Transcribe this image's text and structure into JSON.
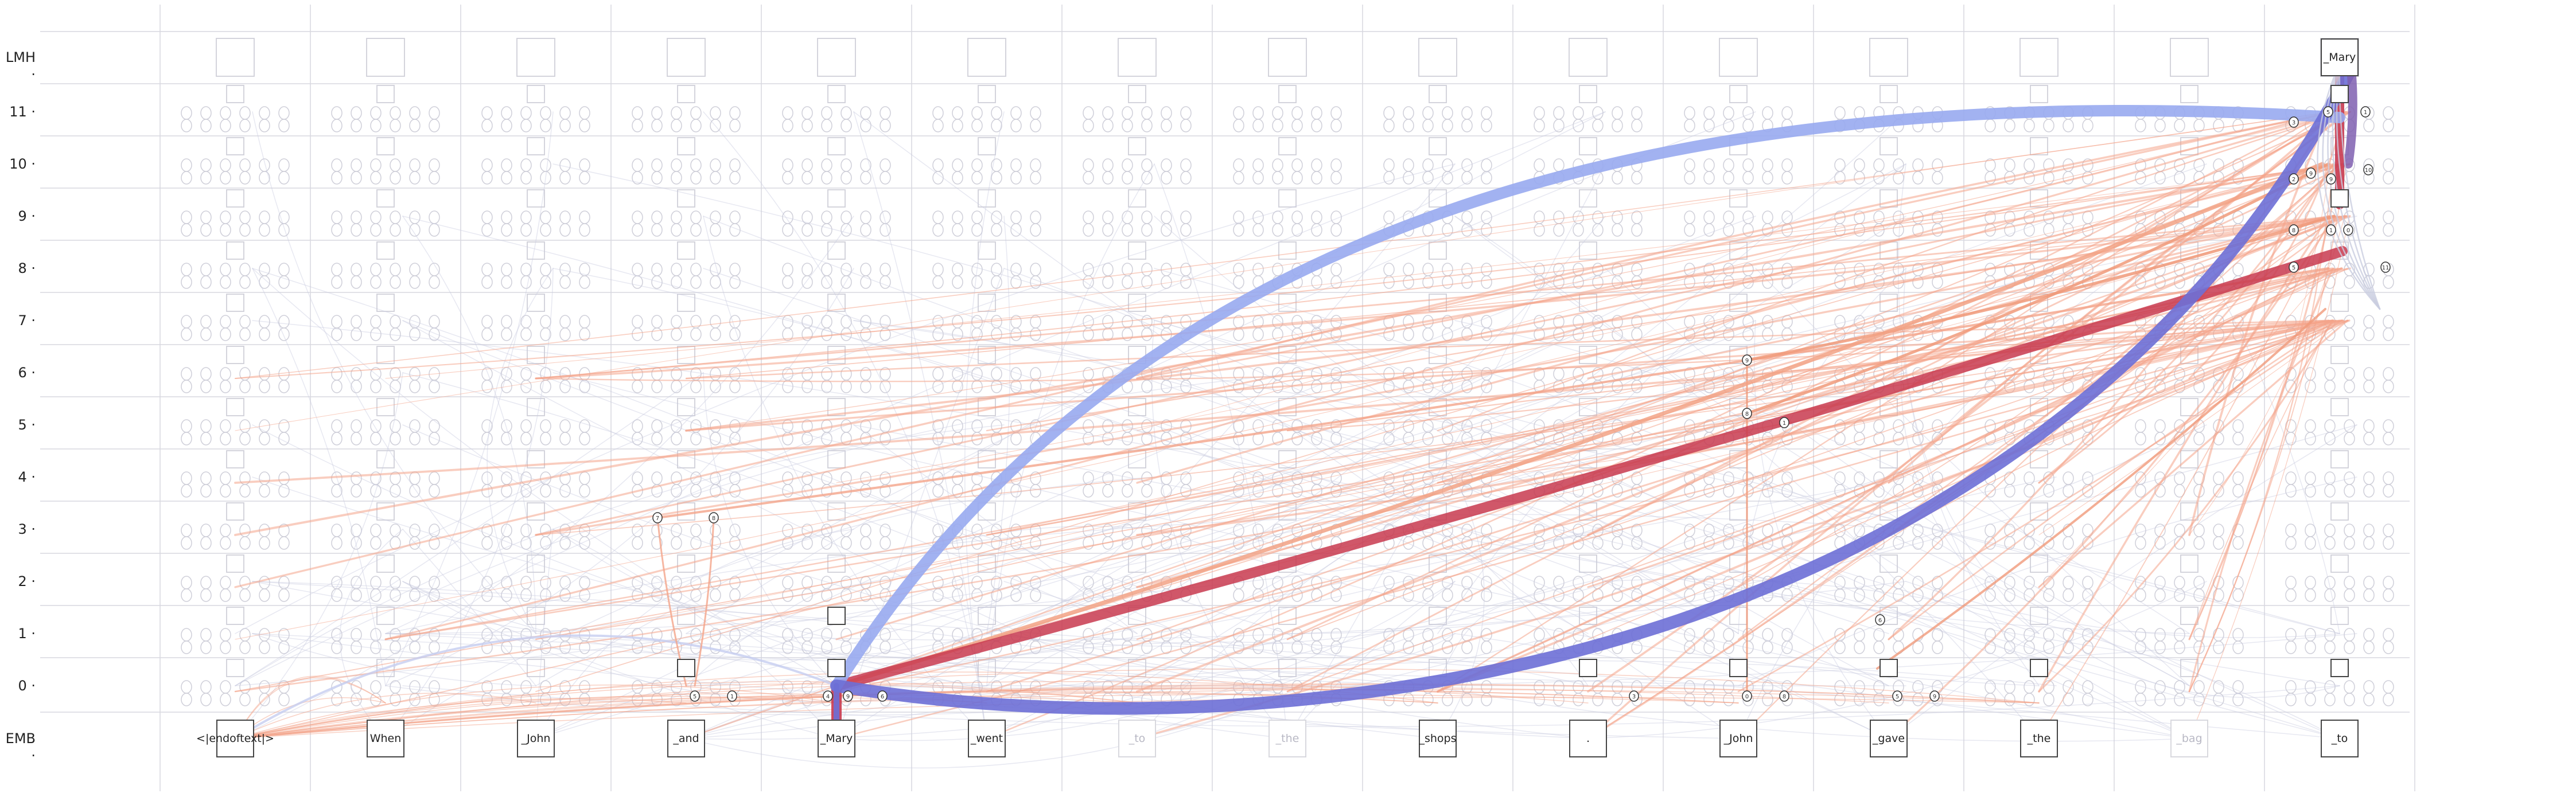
{
  "layer_labels": {
    "emb": "EMB",
    "lmh": "LMH",
    "layers": [
      "0",
      "1",
      "2",
      "3",
      "4",
      "5",
      "6",
      "7",
      "8",
      "9",
      "10",
      "11"
    ]
  },
  "tokens": [
    {
      "label": "<|endoftext|>",
      "faint": false
    },
    {
      "label": "When",
      "faint": false
    },
    {
      "label": "_John",
      "faint": false
    },
    {
      "label": "_and",
      "faint": false
    },
    {
      "label": "_Mary",
      "faint": false
    },
    {
      "label": "_went",
      "faint": false
    },
    {
      "label": "_to",
      "faint": true
    },
    {
      "label": "_the",
      "faint": true
    },
    {
      "label": "_shops",
      "faint": false
    },
    {
      "label": ".",
      "faint": false
    },
    {
      "label": "_John",
      "faint": false
    },
    {
      "label": "_gave",
      "faint": false
    },
    {
      "label": "_the",
      "faint": false
    },
    {
      "label": "_bag",
      "faint": true
    },
    {
      "label": "_to",
      "faint": false
    }
  ],
  "output_token": "_Mary",
  "head_node_labels": [
    "0",
    "1",
    "2",
    "3",
    "4",
    "5",
    "6",
    "7",
    "8",
    "9",
    "10",
    "11"
  ],
  "colors": {
    "grid": "#d7d7df",
    "inactive_node": "#cfcfd9",
    "edge_positive_strong": "#c8394f",
    "edge_positive_faint": "#f4a48a",
    "edge_negative_strong": "#6d6fd6",
    "edge_negative_light": "#98aaf0",
    "edge_neutral": "#c9cde0"
  }
}
